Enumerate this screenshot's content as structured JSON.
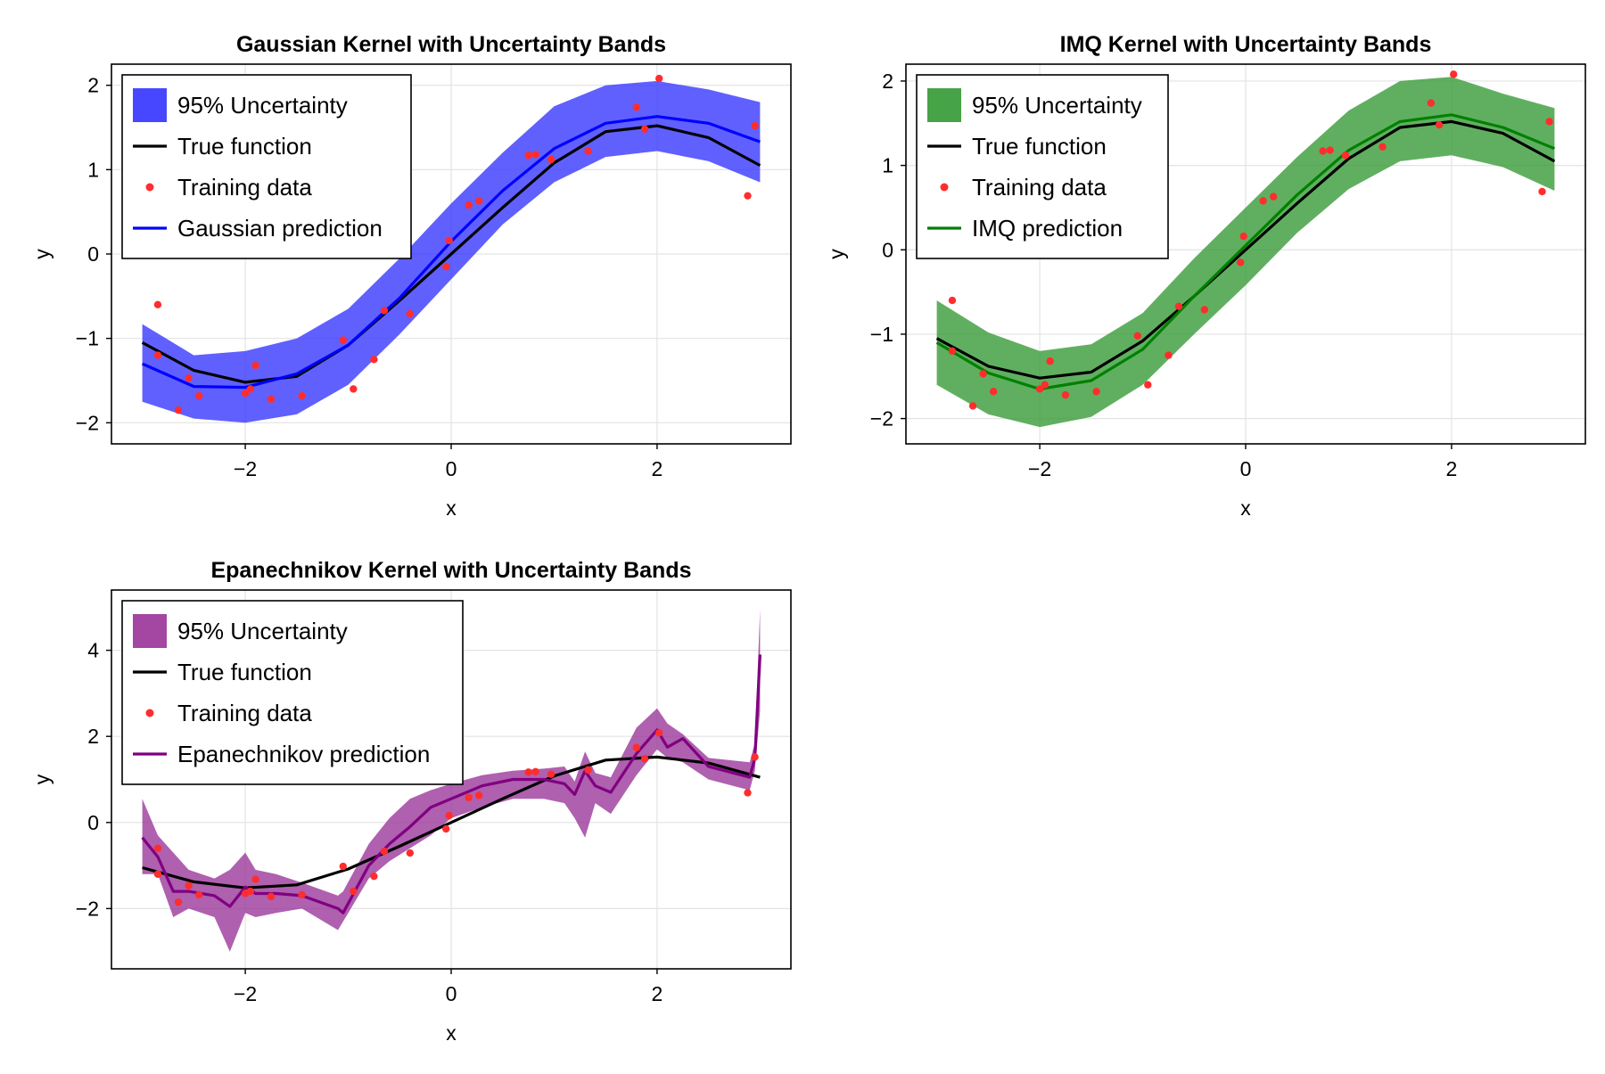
{
  "chart_data": [
    {
      "type": "line",
      "title": "Gaussian Kernel with Uncertainty Bands",
      "xlabel": "x",
      "ylabel": "y",
      "xlim": [
        -3.3,
        3.3
      ],
      "ylim": [
        -2.25,
        2.25
      ],
      "xticks": [
        -2,
        0,
        2
      ],
      "yticks": [
        -2,
        -1,
        0,
        1,
        2
      ],
      "xtick_labels": [
        "−2",
        "0",
        "2"
      ],
      "ytick_labels": [
        "−2",
        "−1",
        "0",
        "1",
        "2"
      ],
      "grid": true,
      "legend_position": "top-left",
      "legend": [
        "95% Uncertainty",
        "True function",
        "Training data",
        "Gaussian prediction"
      ],
      "band": {
        "name": "95% Uncertainty",
        "color": "#3333ff",
        "x": [
          -3.0,
          -2.5,
          -2.0,
          -1.5,
          -1.0,
          -0.5,
          0.0,
          0.5,
          1.0,
          1.5,
          2.0,
          2.5,
          3.0
        ],
        "lower": [
          -1.75,
          -1.95,
          -2.0,
          -1.9,
          -1.55,
          -0.95,
          -0.3,
          0.35,
          0.85,
          1.15,
          1.22,
          1.1,
          0.85
        ],
        "upper": [
          -0.83,
          -1.2,
          -1.15,
          -1.0,
          -0.65,
          -0.05,
          0.6,
          1.2,
          1.75,
          2.0,
          2.05,
          1.95,
          1.8
        ]
      },
      "series": [
        {
          "name": "True function",
          "color": "#000000",
          "x": [
            -3.0,
            -2.5,
            -2.0,
            -1.5,
            -1.0,
            -0.5,
            0.0,
            0.5,
            1.0,
            1.5,
            2.0,
            2.5,
            3.0
          ],
          "y": [
            -1.05,
            -1.38,
            -1.52,
            -1.45,
            -1.08,
            -0.55,
            0.0,
            0.55,
            1.08,
            1.45,
            1.52,
            1.38,
            1.05
          ]
        },
        {
          "name": "Gaussian prediction",
          "color": "#0000ff",
          "x": [
            -3.0,
            -2.5,
            -2.0,
            -1.5,
            -1.0,
            -0.5,
            0.0,
            0.5,
            1.0,
            1.5,
            2.0,
            2.5,
            3.0
          ],
          "y": [
            -1.3,
            -1.57,
            -1.58,
            -1.42,
            -1.08,
            -0.52,
            0.15,
            0.75,
            1.25,
            1.55,
            1.63,
            1.55,
            1.33
          ]
        }
      ],
      "scatter": {
        "name": "Training data",
        "color": "#ff2d2d",
        "points": [
          [
            -2.85,
            -0.6
          ],
          [
            -2.85,
            -1.2
          ],
          [
            -2.65,
            -1.85
          ],
          [
            -2.55,
            -1.47
          ],
          [
            -2.45,
            -1.68
          ],
          [
            -2.0,
            -1.65
          ],
          [
            -1.95,
            -1.6
          ],
          [
            -1.9,
            -1.32
          ],
          [
            -1.75,
            -1.72
          ],
          [
            -1.45,
            -1.68
          ],
          [
            -1.05,
            -1.02
          ],
          [
            -0.95,
            -1.6
          ],
          [
            -0.75,
            -1.25
          ],
          [
            -0.65,
            -0.67
          ],
          [
            -0.4,
            -0.71
          ],
          [
            -0.05,
            -0.15
          ],
          [
            -0.02,
            0.16
          ],
          [
            0.17,
            0.58
          ],
          [
            0.27,
            0.63
          ],
          [
            0.75,
            1.17
          ],
          [
            0.82,
            1.18
          ],
          [
            0.97,
            1.12
          ],
          [
            1.33,
            1.22
          ],
          [
            1.8,
            1.74
          ],
          [
            1.88,
            1.48
          ],
          [
            2.02,
            2.08
          ],
          [
            2.88,
            0.69
          ],
          [
            2.95,
            1.52
          ]
        ]
      }
    },
    {
      "type": "line",
      "title": "IMQ Kernel with Uncertainty Bands",
      "xlabel": "x",
      "ylabel": "y",
      "xlim": [
        -3.3,
        3.3
      ],
      "ylim": [
        -2.3,
        2.2
      ],
      "xticks": [
        -2,
        0,
        2
      ],
      "yticks": [
        -2,
        -1,
        0,
        1,
        2
      ],
      "xtick_labels": [
        "−2",
        "0",
        "2"
      ],
      "ytick_labels": [
        "−2",
        "−1",
        "0",
        "1",
        "2"
      ],
      "grid": true,
      "legend_position": "top-left",
      "legend": [
        "95% Uncertainty",
        "True function",
        "Training data",
        "IMQ prediction"
      ],
      "band": {
        "name": "95% Uncertainty",
        "color": "#339933",
        "x": [
          -3.0,
          -2.5,
          -2.0,
          -1.5,
          -1.0,
          -0.5,
          0.0,
          0.5,
          1.0,
          1.5,
          2.0,
          2.5,
          3.0
        ],
        "lower": [
          -1.6,
          -1.95,
          -2.1,
          -1.98,
          -1.6,
          -1.0,
          -0.42,
          0.2,
          0.72,
          1.05,
          1.12,
          0.98,
          0.7
        ],
        "upper": [
          -0.6,
          -0.98,
          -1.2,
          -1.12,
          -0.75,
          -0.1,
          0.5,
          1.1,
          1.65,
          2.0,
          2.05,
          1.85,
          1.68
        ]
      },
      "series": [
        {
          "name": "True function",
          "color": "#000000",
          "x": [
            -3.0,
            -2.5,
            -2.0,
            -1.5,
            -1.0,
            -0.5,
            0.0,
            0.5,
            1.0,
            1.5,
            2.0,
            2.5,
            3.0
          ],
          "y": [
            -1.05,
            -1.38,
            -1.52,
            -1.45,
            -1.08,
            -0.55,
            0.0,
            0.55,
            1.08,
            1.45,
            1.52,
            1.38,
            1.05
          ]
        },
        {
          "name": "IMQ prediction",
          "color": "#008000",
          "x": [
            -3.0,
            -2.5,
            -2.0,
            -1.5,
            -1.0,
            -0.5,
            0.0,
            0.5,
            1.0,
            1.5,
            2.0,
            2.5,
            3.0
          ],
          "y": [
            -1.1,
            -1.46,
            -1.65,
            -1.55,
            -1.18,
            -0.55,
            0.05,
            0.65,
            1.18,
            1.52,
            1.6,
            1.45,
            1.2
          ]
        }
      ],
      "scatter": {
        "name": "Training data",
        "color": "#ff2d2d",
        "points": [
          [
            -2.85,
            -0.6
          ],
          [
            -2.85,
            -1.2
          ],
          [
            -2.65,
            -1.85
          ],
          [
            -2.55,
            -1.47
          ],
          [
            -2.45,
            -1.68
          ],
          [
            -2.0,
            -1.65
          ],
          [
            -1.95,
            -1.6
          ],
          [
            -1.9,
            -1.32
          ],
          [
            -1.75,
            -1.72
          ],
          [
            -1.45,
            -1.68
          ],
          [
            -1.05,
            -1.02
          ],
          [
            -0.95,
            -1.6
          ],
          [
            -0.75,
            -1.25
          ],
          [
            -0.65,
            -0.67
          ],
          [
            -0.4,
            -0.71
          ],
          [
            -0.05,
            -0.15
          ],
          [
            -0.02,
            0.16
          ],
          [
            0.17,
            0.58
          ],
          [
            0.27,
            0.63
          ],
          [
            0.75,
            1.17
          ],
          [
            0.82,
            1.18
          ],
          [
            0.97,
            1.12
          ],
          [
            1.33,
            1.22
          ],
          [
            1.8,
            1.74
          ],
          [
            1.88,
            1.48
          ],
          [
            2.02,
            2.08
          ],
          [
            2.88,
            0.69
          ],
          [
            2.95,
            1.52
          ]
        ]
      }
    },
    {
      "type": "line",
      "title": "Epanechnikov Kernel with Uncertainty Bands",
      "xlabel": "x",
      "ylabel": "y",
      "xlim": [
        -3.3,
        3.3
      ],
      "ylim": [
        -3.4,
        5.4
      ],
      "xticks": [
        -2,
        0,
        2
      ],
      "yticks": [
        -2,
        0,
        2,
        4
      ],
      "xtick_labels": [
        "−2",
        "0",
        "2"
      ],
      "ytick_labels": [
        "−2",
        "0",
        "2",
        "4"
      ],
      "grid": true,
      "legend_position": "top-left",
      "legend": [
        "95% Uncertainty",
        "True function",
        "Training data",
        "Epanechnikov prediction"
      ],
      "band": {
        "name": "95% Uncertainty",
        "color": "#993399",
        "x": [
          -3.0,
          -2.85,
          -2.7,
          -2.55,
          -2.3,
          -2.15,
          -2.0,
          -1.9,
          -1.7,
          -1.45,
          -1.1,
          -1.05,
          -0.8,
          -0.6,
          -0.4,
          -0.2,
          0.0,
          0.3,
          0.6,
          0.9,
          1.1,
          1.2,
          1.3,
          1.4,
          1.55,
          1.8,
          2.0,
          2.1,
          2.25,
          2.5,
          2.9,
          2.95,
          3.0
        ],
        "lower": [
          -1.2,
          -1.2,
          -2.2,
          -2.0,
          -2.2,
          -3.0,
          -2.1,
          -2.2,
          -2.1,
          -2.0,
          -2.5,
          -2.3,
          -1.3,
          -0.9,
          -0.6,
          -0.3,
          0.1,
          0.35,
          0.55,
          0.55,
          0.45,
          0.1,
          -0.35,
          0.45,
          0.2,
          1.1,
          1.7,
          1.5,
          1.4,
          1.0,
          0.75,
          1.2,
          2.6
        ],
        "upper": [
          0.55,
          -0.3,
          -0.7,
          -1.1,
          -1.3,
          -1.1,
          -0.7,
          -1.1,
          -1.2,
          -1.4,
          -1.7,
          -1.6,
          -0.5,
          0.1,
          0.55,
          0.75,
          0.9,
          1.1,
          1.2,
          1.25,
          1.3,
          0.95,
          1.65,
          1.15,
          1.05,
          2.2,
          2.65,
          2.3,
          2.05,
          1.5,
          1.4,
          1.85,
          4.95
        ]
      },
      "series": [
        {
          "name": "True function",
          "color": "#000000",
          "x": [
            -3.0,
            -2.5,
            -2.0,
            -1.5,
            -1.0,
            -0.5,
            0.0,
            0.5,
            1.0,
            1.5,
            2.0,
            2.5,
            3.0
          ],
          "y": [
            -1.05,
            -1.38,
            -1.52,
            -1.45,
            -1.08,
            -0.55,
            0.0,
            0.55,
            1.08,
            1.45,
            1.52,
            1.38,
            1.05
          ]
        },
        {
          "name": "Epanechnikov prediction",
          "color": "#800080",
          "x": [
            -3.0,
            -2.85,
            -2.7,
            -2.55,
            -2.3,
            -2.15,
            -2.0,
            -1.9,
            -1.7,
            -1.45,
            -1.1,
            -1.05,
            -0.8,
            -0.6,
            -0.4,
            -0.2,
            0.0,
            0.3,
            0.6,
            0.9,
            1.1,
            1.2,
            1.3,
            1.4,
            1.55,
            1.8,
            2.0,
            2.1,
            2.25,
            2.5,
            2.9,
            2.95,
            3.0
          ],
          "y": [
            -0.35,
            -0.8,
            -1.6,
            -1.6,
            -1.7,
            -1.95,
            -1.5,
            -1.65,
            -1.65,
            -1.7,
            -2.0,
            -2.1,
            -1.0,
            -0.5,
            -0.1,
            0.35,
            0.55,
            0.85,
            1.0,
            1.0,
            0.9,
            0.65,
            1.2,
            0.85,
            0.7,
            1.6,
            2.15,
            1.75,
            1.95,
            1.3,
            1.05,
            1.5,
            3.9
          ]
        }
      ],
      "scatter": {
        "name": "Training data",
        "color": "#ff2d2d",
        "points": [
          [
            -2.85,
            -0.6
          ],
          [
            -2.85,
            -1.2
          ],
          [
            -2.65,
            -1.85
          ],
          [
            -2.55,
            -1.47
          ],
          [
            -2.45,
            -1.68
          ],
          [
            -2.0,
            -1.65
          ],
          [
            -1.95,
            -1.6
          ],
          [
            -1.9,
            -1.32
          ],
          [
            -1.75,
            -1.72
          ],
          [
            -1.45,
            -1.68
          ],
          [
            -1.05,
            -1.02
          ],
          [
            -0.95,
            -1.6
          ],
          [
            -0.75,
            -1.25
          ],
          [
            -0.65,
            -0.67
          ],
          [
            -0.4,
            -0.71
          ],
          [
            -0.05,
            -0.15
          ],
          [
            -0.02,
            0.16
          ],
          [
            0.17,
            0.58
          ],
          [
            0.27,
            0.63
          ],
          [
            0.75,
            1.17
          ],
          [
            0.82,
            1.18
          ],
          [
            0.97,
            1.12
          ],
          [
            1.33,
            1.22
          ],
          [
            1.8,
            1.74
          ],
          [
            1.88,
            1.48
          ],
          [
            2.02,
            2.08
          ],
          [
            2.88,
            0.69
          ],
          [
            2.95,
            1.52
          ]
        ]
      }
    }
  ]
}
